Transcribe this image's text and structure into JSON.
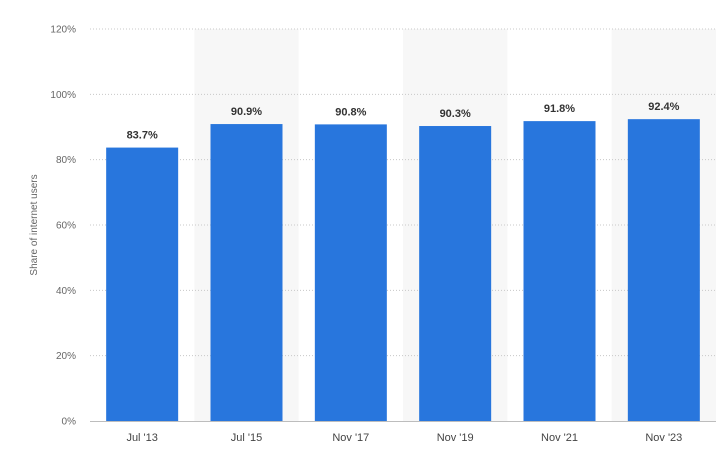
{
  "chart_data": {
    "type": "bar",
    "categories": [
      "Jul '13",
      "Jul '15",
      "Nov '17",
      "Nov '19",
      "Nov '21",
      "Nov '23"
    ],
    "values": [
      83.7,
      90.9,
      90.8,
      90.3,
      91.8,
      92.4
    ],
    "value_labels": [
      "83.7%",
      "90.9%",
      "90.8%",
      "90.3%",
      "91.8%",
      "92.4%"
    ],
    "title": "",
    "xlabel": "",
    "ylabel": "Share of internet users",
    "ylim": [
      0,
      120
    ],
    "yticks": [
      0,
      20,
      40,
      60,
      80,
      100,
      120
    ],
    "ytick_labels": [
      "0%",
      "20%",
      "40%",
      "60%",
      "80%",
      "100%",
      "120%"
    ],
    "grid": true,
    "bar_color": "#2876dd",
    "band_color": "#f7f7f7",
    "grid_color": "#c8c8c8"
  }
}
